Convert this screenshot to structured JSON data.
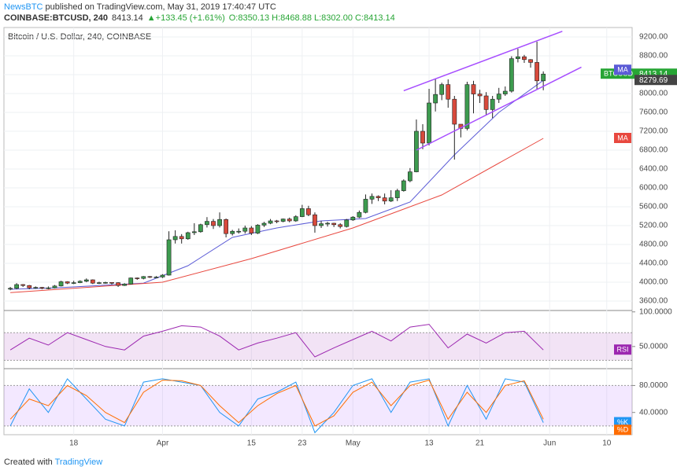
{
  "header": {
    "author": "NewsBTC",
    "published": "published on TradingView.com, May 31, 2019 17:40:47 UTC",
    "symbol": "COINBASE:BTCUSD, 240",
    "last": 8413.14,
    "change": "▲+133.45 (+1.61%)",
    "ohlc": "O:8350.13 H:8468.88 L:8302.00 C:8413.14"
  },
  "footer": {
    "created": "Created with",
    "brand": "TradingView"
  },
  "chart_data": [
    {
      "type": "candlestick",
      "title": "Bitcoin / U.S. Dollar, 240, COINBASE",
      "up_color": "#3d9b4f",
      "down_color": "#d84a3c",
      "xlim": [
        "2019-03-07",
        "2019-06-14"
      ],
      "xticks": [
        {
          "value": "2019-03-18",
          "label": "18"
        },
        {
          "value": "2019-04-01",
          "label": "Apr"
        },
        {
          "value": "2019-04-15",
          "label": "15"
        },
        {
          "value": "2019-04-23",
          "label": "23"
        },
        {
          "value": "2019-05-01",
          "label": "May"
        },
        {
          "value": "2019-05-13",
          "label": "13"
        },
        {
          "value": "2019-05-21",
          "label": "21"
        },
        {
          "value": "2019-06-01",
          "label": "Jun"
        },
        {
          "value": "2019-06-10",
          "label": "10"
        }
      ],
      "ylim": [
        3400,
        9400
      ],
      "yticks": [
        {
          "value": 3600,
          "label": "3600.00"
        },
        {
          "value": 4000,
          "label": "4000.00"
        },
        {
          "value": 4400,
          "label": "4400.00"
        },
        {
          "value": 4800,
          "label": "4800.00"
        },
        {
          "value": 5200,
          "label": "5200.00"
        },
        {
          "value": 5600,
          "label": "5600.00"
        },
        {
          "value": 6000,
          "label": "6000.00"
        },
        {
          "value": 6400,
          "label": "6400.00"
        },
        {
          "value": 6800,
          "label": "6800.00"
        },
        {
          "value": 7200,
          "label": "7200.00"
        },
        {
          "value": 7600,
          "label": "7600.00"
        },
        {
          "value": 8000,
          "label": "8000.00"
        },
        {
          "value": 8400,
          "label": "8400.00"
        },
        {
          "value": 8800,
          "label": "8800.00"
        },
        {
          "value": 9200,
          "label": "9200.00"
        }
      ],
      "grid": true,
      "x": [
        "2019-03-08",
        "2019-03-09",
        "2019-03-10",
        "2019-03-11",
        "2019-03-12",
        "2019-03-13",
        "2019-03-14",
        "2019-03-15",
        "2019-03-16",
        "2019-03-17",
        "2019-03-18",
        "2019-03-19",
        "2019-03-20",
        "2019-03-21",
        "2019-03-22",
        "2019-03-23",
        "2019-03-24",
        "2019-03-25",
        "2019-03-26",
        "2019-03-27",
        "2019-03-28",
        "2019-03-29",
        "2019-03-30",
        "2019-03-31",
        "2019-04-01",
        "2019-04-02",
        "2019-04-03",
        "2019-04-04",
        "2019-04-05",
        "2019-04-06",
        "2019-04-07",
        "2019-04-08",
        "2019-04-09",
        "2019-04-10",
        "2019-04-11",
        "2019-04-12",
        "2019-04-13",
        "2019-04-14",
        "2019-04-15",
        "2019-04-16",
        "2019-04-17",
        "2019-04-18",
        "2019-04-19",
        "2019-04-20",
        "2019-04-21",
        "2019-04-22",
        "2019-04-23",
        "2019-04-24",
        "2019-04-25",
        "2019-04-26",
        "2019-04-27",
        "2019-04-28",
        "2019-04-29",
        "2019-04-30",
        "2019-05-01",
        "2019-05-02",
        "2019-05-03",
        "2019-05-04",
        "2019-05-05",
        "2019-05-06",
        "2019-05-07",
        "2019-05-08",
        "2019-05-09",
        "2019-05-10",
        "2019-05-11",
        "2019-05-12",
        "2019-05-13",
        "2019-05-14",
        "2019-05-15",
        "2019-05-16",
        "2019-05-17",
        "2019-05-18",
        "2019-05-19",
        "2019-05-20",
        "2019-05-21",
        "2019-05-22",
        "2019-05-23",
        "2019-05-24",
        "2019-05-25",
        "2019-05-26",
        "2019-05-27",
        "2019-05-28",
        "2019-05-29",
        "2019-05-30",
        "2019-05-31"
      ],
      "open": [
        3860,
        3870,
        3950,
        3930,
        3880,
        3890,
        3870,
        3880,
        3920,
        4010,
        3980,
        3990,
        4020,
        4050,
        3980,
        3990,
        3995,
        3990,
        3930,
        3960,
        4090,
        4080,
        4120,
        4110,
        4110,
        4150,
        4900,
        4970,
        4920,
        5050,
        5070,
        5220,
        5290,
        5200,
        5330,
        5030,
        5080,
        5080,
        5150,
        5040,
        5210,
        5250,
        5300,
        5290,
        5340,
        5300,
        5390,
        5560,
        5430,
        5200,
        5240,
        5250,
        5220,
        5180,
        5320,
        5380,
        5480,
        5760,
        5820,
        5790,
        5720,
        5790,
        5940,
        6150,
        6340,
        7200,
        6950,
        7800,
        7980,
        8190,
        7880,
        7350,
        7260,
        8190,
        7990,
        7950,
        7660,
        7880,
        7990,
        8050,
        8740,
        8780,
        8720,
        8660,
        8270
      ],
      "high": [
        3900,
        3980,
        3960,
        3940,
        3910,
        3900,
        3910,
        3940,
        4030,
        4020,
        4030,
        4040,
        4080,
        4060,
        4010,
        4010,
        4000,
        4000,
        3980,
        4100,
        4100,
        4130,
        4130,
        4130,
        4170,
        5080,
        5100,
        5020,
        5070,
        5250,
        5240,
        5380,
        5340,
        5480,
        5350,
        5110,
        5140,
        5200,
        5190,
        5230,
        5280,
        5340,
        5320,
        5350,
        5370,
        5420,
        5640,
        5620,
        5480,
        5300,
        5280,
        5260,
        5250,
        5340,
        5400,
        5520,
        5860,
        5880,
        5840,
        5880,
        5950,
        5980,
        6180,
        6420,
        7450,
        7350,
        8100,
        8320,
        8230,
        8300,
        7950,
        7350,
        8250,
        8270,
        8080,
        8030,
        7950,
        8120,
        8150,
        8790,
        8950,
        8820,
        8730,
        9100,
        8470
      ],
      "low": [
        3830,
        3850,
        3900,
        3850,
        3860,
        3850,
        3850,
        3870,
        3910,
        3960,
        3960,
        3980,
        4000,
        3960,
        3960,
        3970,
        3950,
        3900,
        3920,
        3950,
        4050,
        4060,
        4090,
        4090,
        4090,
        4140,
        4820,
        4820,
        4900,
        5000,
        5050,
        5160,
        5130,
        5160,
        4950,
        4990,
        5030,
        5030,
        5000,
        5020,
        5170,
        5230,
        5250,
        5270,
        5270,
        5280,
        5380,
        5400,
        5050,
        5150,
        5180,
        5170,
        5140,
        5160,
        5300,
        5360,
        5460,
        5660,
        5720,
        5650,
        5700,
        5720,
        5920,
        6120,
        6330,
        6820,
        6900,
        7620,
        7860,
        7700,
        6600,
        7070,
        7220,
        7580,
        7800,
        7550,
        7480,
        7800,
        7950,
        8020,
        8660,
        8650,
        8550,
        8080,
        8070
      ],
      "close": [
        3870,
        3950,
        3930,
        3880,
        3890,
        3870,
        3880,
        3920,
        4010,
        3980,
        3990,
        4020,
        4050,
        3980,
        3990,
        3995,
        3990,
        3930,
        3960,
        4090,
        4080,
        4120,
        4110,
        4110,
        4150,
        4900,
        4970,
        4920,
        5050,
        5070,
        5220,
        5290,
        5200,
        5330,
        5030,
        5080,
        5080,
        5150,
        5040,
        5210,
        5250,
        5300,
        5290,
        5340,
        5300,
        5390,
        5560,
        5430,
        5200,
        5240,
        5250,
        5220,
        5180,
        5320,
        5380,
        5480,
        5760,
        5820,
        5790,
        5720,
        5790,
        5940,
        6150,
        6340,
        7200,
        6950,
        7800,
        7980,
        8190,
        7880,
        7350,
        7260,
        8190,
        7990,
        7950,
        7660,
        7880,
        7990,
        8050,
        8740,
        8780,
        8720,
        8660,
        8270,
        8413.14
      ],
      "series": [
        {
          "name": "MA",
          "color": "#5b5bd6",
          "x": [
            "2019-03-08",
            "2019-03-15",
            "2019-03-22",
            "2019-03-29",
            "2019-04-05",
            "2019-04-12",
            "2019-04-19",
            "2019-04-26",
            "2019-05-03",
            "2019-05-10",
            "2019-05-17",
            "2019-05-24",
            "2019-05-31"
          ],
          "values": [
            3850,
            3880,
            3930,
            3980,
            4350,
            4950,
            5150,
            5300,
            5350,
            5700,
            6700,
            7600,
            8280
          ]
        },
        {
          "name": "MA",
          "color": "#e8483f",
          "x": [
            "2019-03-08",
            "2019-04-01",
            "2019-04-15",
            "2019-05-01",
            "2019-05-15",
            "2019-05-31"
          ],
          "values": [
            3780,
            4000,
            4500,
            5150,
            5850,
            7050
          ]
        }
      ],
      "ma_value": 8279.69,
      "price_label": {
        "name": "BTCUSD",
        "value": 8413.14,
        "color": "#27a535"
      },
      "trendlines": {
        "color": "#a64dff",
        "lines": [
          {
            "x": [
              "2019-05-09",
              "2019-06-03"
            ],
            "values": [
              8060,
              9320
            ]
          },
          {
            "x": [
              "2019-05-11",
              "2019-06-06"
            ],
            "values": [
              6800,
              8560
            ]
          }
        ]
      }
    },
    {
      "type": "line",
      "ylim": [
        18,
        102
      ],
      "band": [
        30,
        70
      ],
      "band_color": "#9c27b0",
      "yticks": [
        {
          "value": 100,
          "label": "100.0000"
        },
        {
          "value": 50,
          "label": "50.0000"
        }
      ],
      "series": [
        {
          "name": "RSI",
          "color": "#9c27b0",
          "x": [
            "2019-03-08",
            "2019-03-11",
            "2019-03-14",
            "2019-03-17",
            "2019-03-20",
            "2019-03-23",
            "2019-03-26",
            "2019-03-29",
            "2019-04-01",
            "2019-04-04",
            "2019-04-07",
            "2019-04-10",
            "2019-04-13",
            "2019-04-16",
            "2019-04-19",
            "2019-04-22",
            "2019-04-25",
            "2019-04-28",
            "2019-05-01",
            "2019-05-04",
            "2019-05-07",
            "2019-05-10",
            "2019-05-13",
            "2019-05-16",
            "2019-05-19",
            "2019-05-22",
            "2019-05-25",
            "2019-05-28",
            "2019-05-31"
          ],
          "values": [
            45,
            62,
            52,
            70,
            60,
            50,
            45,
            65,
            72,
            80,
            78,
            65,
            45,
            55,
            62,
            70,
            35,
            48,
            60,
            72,
            58,
            78,
            82,
            48,
            68,
            55,
            70,
            72,
            45
          ]
        }
      ]
    },
    {
      "type": "line",
      "ylim": [
        7,
        105
      ],
      "band": [
        20,
        80
      ],
      "band_color": "#a64dff",
      "yticks": [
        {
          "value": 80,
          "label": "80.0000"
        },
        {
          "value": 40,
          "label": "40.0000"
        }
      ],
      "series": [
        {
          "name": "%K",
          "color": "#2196f3",
          "x": [
            "2019-03-08",
            "2019-03-11",
            "2019-03-14",
            "2019-03-17",
            "2019-03-20",
            "2019-03-23",
            "2019-03-26",
            "2019-03-29",
            "2019-04-01",
            "2019-04-04",
            "2019-04-07",
            "2019-04-10",
            "2019-04-13",
            "2019-04-16",
            "2019-04-19",
            "2019-04-22",
            "2019-04-25",
            "2019-04-28",
            "2019-05-01",
            "2019-05-04",
            "2019-05-07",
            "2019-05-10",
            "2019-05-13",
            "2019-05-16",
            "2019-05-19",
            "2019-05-22",
            "2019-05-25",
            "2019-05-28",
            "2019-05-31"
          ],
          "values": [
            20,
            75,
            40,
            90,
            60,
            30,
            20,
            85,
            90,
            85,
            80,
            40,
            20,
            60,
            70,
            85,
            10,
            40,
            80,
            90,
            40,
            85,
            90,
            20,
            80,
            30,
            90,
            85,
            25
          ]
        },
        {
          "name": "%D",
          "color": "#ff6d00",
          "x": [
            "2019-03-08",
            "2019-03-11",
            "2019-03-14",
            "2019-03-17",
            "2019-03-20",
            "2019-03-23",
            "2019-03-26",
            "2019-03-29",
            "2019-04-01",
            "2019-04-04",
            "2019-04-07",
            "2019-04-10",
            "2019-04-13",
            "2019-04-16",
            "2019-04-19",
            "2019-04-22",
            "2019-04-25",
            "2019-04-28",
            "2019-05-01",
            "2019-05-04",
            "2019-05-07",
            "2019-05-10",
            "2019-05-13",
            "2019-05-16",
            "2019-05-19",
            "2019-05-22",
            "2019-05-25",
            "2019-05-28",
            "2019-05-31"
          ],
          "values": [
            30,
            60,
            50,
            80,
            65,
            40,
            25,
            70,
            88,
            87,
            80,
            50,
            25,
            50,
            68,
            80,
            20,
            35,
            70,
            85,
            50,
            80,
            88,
            30,
            70,
            40,
            80,
            87,
            30
          ]
        }
      ]
    }
  ]
}
